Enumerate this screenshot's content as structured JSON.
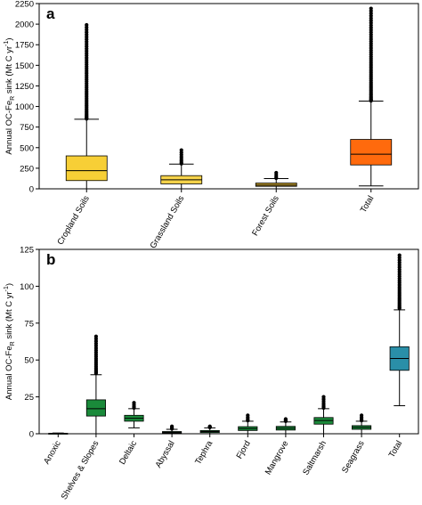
{
  "chart_data": [
    {
      "type": "box",
      "panel_label": "a",
      "ylabel": "Annual OC-Fe",
      "ylabel_sub": "R",
      "ylabel_rest": " sink (Mt C yr",
      "ylabel_sup": "-1",
      "ylabel_end": ")",
      "ylim": [
        0,
        2250
      ],
      "yticks": [
        0,
        250,
        500,
        750,
        1000,
        1250,
        1500,
        1750,
        2000,
        2250
      ],
      "grid": false,
      "categories": [
        "Cropland Soils",
        "Grassland Soils",
        "Forest Soils",
        "Total"
      ],
      "colors": [
        "#f7cf36",
        "#f5d24a",
        "#c8a12c",
        "#ff6a0d"
      ],
      "boxes": [
        {
          "whisker_low": 0,
          "q1": 100,
          "median": 220,
          "q3": 400,
          "whisker_high": 845,
          "outlier_min": 850,
          "outlier_max": 1990
        },
        {
          "whisker_low": 0,
          "q1": 60,
          "median": 110,
          "q3": 160,
          "whisker_high": 300,
          "outlier_min": 305,
          "outlier_max": 470
        },
        {
          "whisker_low": 0,
          "q1": 30,
          "median": 45,
          "q3": 70,
          "whisker_high": 125,
          "outlier_min": 130,
          "outlier_max": 195
        },
        {
          "whisker_low": 35,
          "q1": 290,
          "median": 420,
          "q3": 600,
          "whisker_high": 1065,
          "outlier_min": 1070,
          "outlier_max": 2190
        }
      ]
    },
    {
      "type": "box",
      "panel_label": "b",
      "ylabel": "Annual OC-Fe",
      "ylabel_sub": "R",
      "ylabel_rest": " sink (Mt C yr",
      "ylabel_sup": "-1",
      "ylabel_end": ")",
      "ylim": [
        0,
        125
      ],
      "yticks": [
        0,
        25,
        50,
        75,
        100,
        125
      ],
      "grid": false,
      "categories": [
        "Anoxic",
        "Shelves & Slopes",
        "Deltaic",
        "Abyssal",
        "Tephra",
        "Fjord",
        "Mangrove",
        "Saltmarsh",
        "Seagrass",
        "Total"
      ],
      "colors": [
        "#1a8a3a",
        "#1a8a3a",
        "#1a8a3a",
        "#1a8a3a",
        "#1a8a3a",
        "#1a8a3a",
        "#1a8a3a",
        "#1a8a3a",
        "#1a8a3a",
        "#2a8fa8"
      ],
      "boxes": [
        {
          "whisker_low": 0,
          "q1": 0.1,
          "median": 0.2,
          "q3": 0.3,
          "whisker_high": 0.5,
          "outlier_min": null,
          "outlier_max": null
        },
        {
          "whisker_low": 0,
          "q1": 12,
          "median": 17,
          "q3": 23,
          "whisker_high": 40,
          "outlier_min": 41,
          "outlier_max": 66
        },
        {
          "whisker_low": 4,
          "q1": 8.5,
          "median": 10.5,
          "q3": 12.5,
          "whisker_high": 17,
          "outlier_min": 17.5,
          "outlier_max": 21
        },
        {
          "whisker_low": 0,
          "q1": 0.5,
          "median": 1,
          "q3": 1.5,
          "whisker_high": 3,
          "outlier_min": 3.3,
          "outlier_max": 5
        },
        {
          "whisker_low": 0,
          "q1": 0.8,
          "median": 1.5,
          "q3": 2.2,
          "whisker_high": 4,
          "outlier_min": 4.3,
          "outlier_max": 5
        },
        {
          "whisker_low": 0,
          "q1": 2.2,
          "median": 3.5,
          "q3": 4.8,
          "whisker_high": 8.5,
          "outlier_min": 9,
          "outlier_max": 12.5
        },
        {
          "whisker_low": 0,
          "q1": 2.5,
          "median": 3.8,
          "q3": 5,
          "whisker_high": 8,
          "outlier_min": 8.5,
          "outlier_max": 10
        },
        {
          "whisker_low": 0,
          "q1": 6.5,
          "median": 9,
          "q3": 11,
          "whisker_high": 17,
          "outlier_min": 17.5,
          "outlier_max": 25
        },
        {
          "whisker_low": 0,
          "q1": 3,
          "median": 4.3,
          "q3": 5.5,
          "whisker_high": 8.5,
          "outlier_min": 9,
          "outlier_max": 12.5
        },
        {
          "whisker_low": 19,
          "q1": 43,
          "median": 51,
          "q3": 59,
          "whisker_high": 84,
          "outlier_min": 85,
          "outlier_max": 121
        }
      ]
    }
  ]
}
